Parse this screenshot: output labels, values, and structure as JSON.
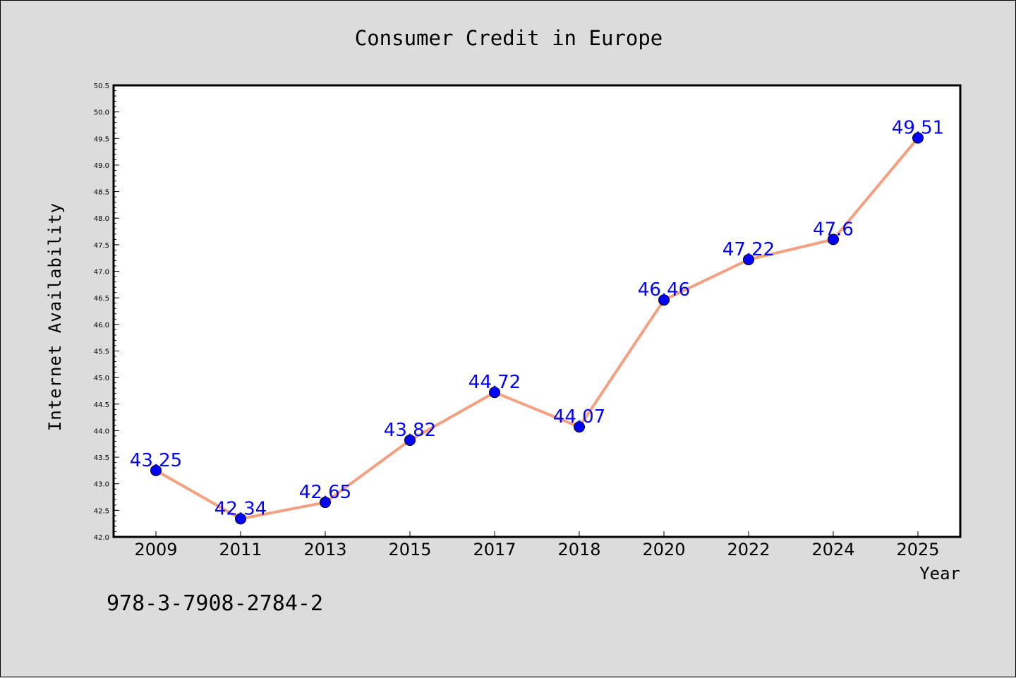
{
  "chart_data": {
    "type": "line",
    "title": "Consumer Credit in Europe",
    "xlabel": "Year",
    "ylabel": "Internet Availability",
    "categories": [
      "2009",
      "2011",
      "2013",
      "2015",
      "2017",
      "2018",
      "2020",
      "2022",
      "2024",
      "2025"
    ],
    "series": [
      {
        "values": [
          43.25,
          42.34,
          42.65,
          43.82,
          44.72,
          44.07,
          46.46,
          47.22,
          47.6,
          49.51
        ],
        "labels": [
          "43.25",
          "42.34",
          "42.65",
          "43.82",
          "44.72",
          "44.07",
          "46.46",
          "47.22",
          "47.6",
          "49.51"
        ]
      }
    ],
    "ylim": [
      42.0,
      50.5
    ],
    "yticks": [
      "42.0",
      "42.5",
      "43.0",
      "43.5",
      "44.0",
      "44.5",
      "45.0",
      "45.5",
      "46.0",
      "46.5",
      "47.0",
      "47.5",
      "48.0",
      "48.5",
      "49.0",
      "49.5",
      "50.0",
      "50.5"
    ],
    "grid": false,
    "line_color": "#f4a081",
    "marker_color": "#0000ff",
    "label_color": "#0000ff",
    "background": "#dcdcdc",
    "plot_background": "#ffffff"
  },
  "annotation": "978-3-7908-2784-2"
}
